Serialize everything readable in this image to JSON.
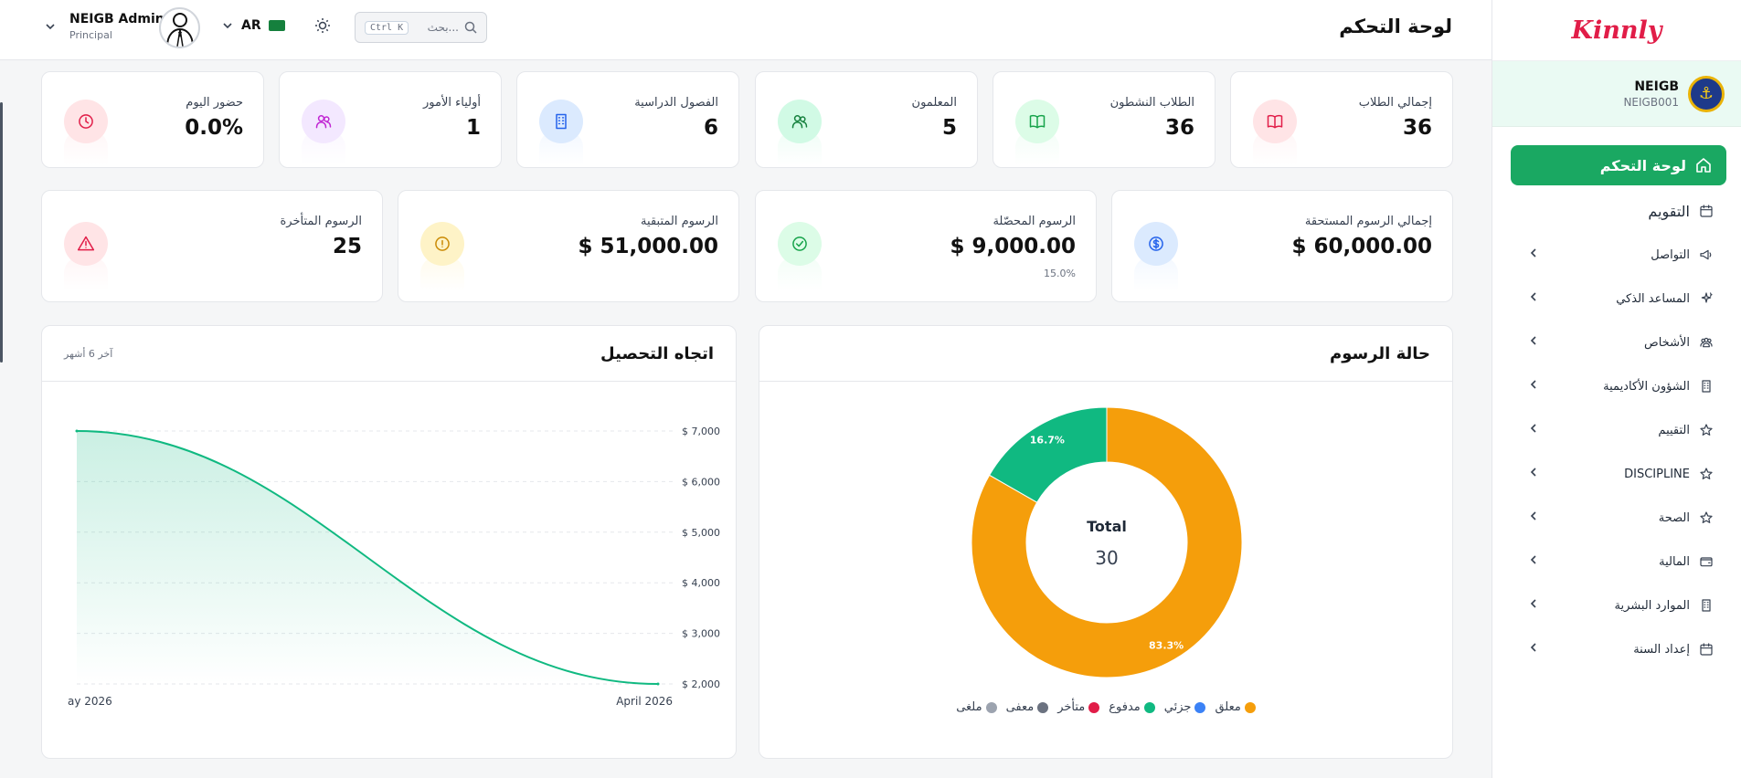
{
  "topbar": {
    "page_title": "لوحة التحكم",
    "user_name": "NEIGB Admin",
    "user_role": "Principal",
    "lang": "AR",
    "search_placeholder": "بحث...",
    "search_shortcut": "Ctrl K"
  },
  "sidebar": {
    "brand": "Kinnly",
    "school_name": "NEIGB",
    "school_code": "NEIGB001",
    "active_item": "لوحة التحكم",
    "items": [
      {
        "label": "التقويم",
        "icon": "calendar-icon"
      },
      {
        "label": "التواصل",
        "icon": "megaphone-icon"
      },
      {
        "label": "المساعد الذكي",
        "icon": "sparkles-icon"
      },
      {
        "label": "الأشخاص",
        "icon": "people-icon"
      },
      {
        "label": "الشؤون الأكاديمية",
        "icon": "building-icon"
      },
      {
        "label": "التقييم",
        "icon": "star-icon"
      },
      {
        "label": "DISCIPLINE",
        "icon": "star-icon"
      },
      {
        "label": "الصحة",
        "icon": "star-icon"
      },
      {
        "label": "المالية",
        "icon": "wallet-icon"
      },
      {
        "label": "الموارد البشرية",
        "icon": "building-icon"
      },
      {
        "label": "إعداد السنة",
        "icon": "calendar-icon"
      }
    ]
  },
  "stats_row1": [
    {
      "label": "إجمالي الطلاب",
      "value": "36",
      "icon": "book-icon",
      "color": "#e11d48",
      "bg": "#ffe4e6"
    },
    {
      "label": "الطلاب النشطون",
      "value": "36",
      "icon": "book-icon",
      "color": "#16a34a",
      "bg": "#dcfce7"
    },
    {
      "label": "المعلمون",
      "value": "5",
      "icon": "users-icon",
      "color": "#15803d",
      "bg": "#d1fae5"
    },
    {
      "label": "الفصول الدراسية",
      "value": "6",
      "icon": "building-icon",
      "color": "#2563eb",
      "bg": "#dbeafe"
    },
    {
      "label": "أولياء الأمور",
      "value": "1",
      "icon": "users-icon",
      "color": "#c026d3",
      "bg": "#f3e8ff"
    },
    {
      "label": "حضور اليوم",
      "value": "0.0%",
      "icon": "clock-icon",
      "color": "#e11d48",
      "bg": "#ffe4e6"
    }
  ],
  "stats_row2": [
    {
      "label": "إجمالي الرسوم المستحقة",
      "value": "$ 60,000.00",
      "sub": "",
      "icon": "dollar-icon",
      "color": "#2563eb",
      "bg": "#dbeafe"
    },
    {
      "label": "الرسوم المحصّلة",
      "value": "$ 9,000.00",
      "sub": "15.0%",
      "icon": "check-circle-icon",
      "color": "#16a34a",
      "bg": "#dcfce7"
    },
    {
      "label": "الرسوم المتبقية",
      "value": "$ 51,000.00",
      "sub": "",
      "icon": "alert-circle-icon",
      "color": "#ca8a04",
      "bg": "#fef3c7"
    },
    {
      "label": "الرسوم المتأخرة",
      "value": "25",
      "sub": "",
      "icon": "warning-icon",
      "color": "#e11d48",
      "bg": "#ffe4e6"
    }
  ],
  "fee_status": {
    "title": "حالة الرسوم",
    "center_label": "Total",
    "center_value": "30",
    "legend": [
      {
        "label": "معلق",
        "color": "#f59e0b"
      },
      {
        "label": "جزئي",
        "color": "#3b82f6"
      },
      {
        "label": "مدفوع",
        "color": "#10b981"
      },
      {
        "label": "متأخر",
        "color": "#e11d48"
      },
      {
        "label": "معفى",
        "color": "#6b7280"
      },
      {
        "label": "ملغى",
        "color": "#9ca3af"
      }
    ]
  },
  "collection_trend": {
    "title": "اتجاه التحصيل",
    "subtitle": "آخر 6 أشهر"
  },
  "chart_data": [
    {
      "type": "pie",
      "title": "حالة الرسوم",
      "categories": [
        "معلق",
        "مدفوع"
      ],
      "values": [
        83.3,
        16.7
      ],
      "value_labels": [
        "83.3%",
        "16.7%"
      ],
      "colors": [
        "#f59e0b",
        "#10b981"
      ],
      "total": 30
    },
    {
      "type": "area",
      "title": "اتجاه التحصيل",
      "x_tick_labels": [
        "ay 2026",
        "April 2026"
      ],
      "y_ticks": [
        2000,
        3000,
        4000,
        5000,
        6000,
        7000
      ],
      "y_tick_labels": [
        "$ 2,000",
        "$ 3,000",
        "$ 4,000",
        "$ 5,000",
        "$ 6,000",
        "$ 7,000"
      ],
      "ylim": [
        2000,
        7000
      ],
      "x": [
        "ay 2026",
        "April 2026"
      ],
      "values": [
        7000,
        2000
      ],
      "color": "#10b981",
      "grid": true
    }
  ]
}
